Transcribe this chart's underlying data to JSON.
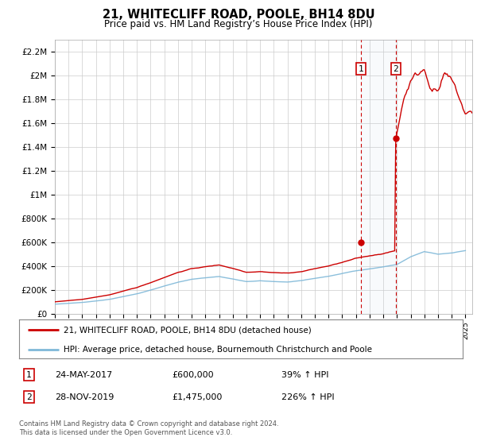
{
  "title": "21, WHITECLIFF ROAD, POOLE, BH14 8DU",
  "subtitle": "Price paid vs. HM Land Registry’s House Price Index (HPI)",
  "ylim": [
    0,
    2300000
  ],
  "yticks": [
    0,
    200000,
    400000,
    600000,
    800000,
    1000000,
    1200000,
    1400000,
    1600000,
    1800000,
    2000000,
    2200000
  ],
  "ytick_labels": [
    "£0",
    "£200K",
    "£400K",
    "£600K",
    "£800K",
    "£1M",
    "£1.2M",
    "£1.4M",
    "£1.6M",
    "£1.8M",
    "£2M",
    "£2.2M"
  ],
  "hpi_color": "#7fb8d8",
  "price_color": "#cc0000",
  "sale1_date": 2017.38,
  "sale1_price": 600000,
  "sale1_label": "1",
  "sale1_text": "24-MAY-2017",
  "sale1_amount": "£600,000",
  "sale1_pct": "39% ↑ HPI",
  "sale2_date": 2019.91,
  "sale2_price": 1475000,
  "sale2_label": "2",
  "sale2_text": "28-NOV-2019",
  "sale2_amount": "£1,475,000",
  "sale2_pct": "226% ↑ HPI",
  "legend_line1": "21, WHITECLIFF ROAD, POOLE, BH14 8DU (detached house)",
  "legend_line2": "HPI: Average price, detached house, Bournemouth Christchurch and Poole",
  "footnote": "Contains HM Land Registry data © Crown copyright and database right 2024.\nThis data is licensed under the Open Government Licence v3.0.",
  "background_color": "#ffffff",
  "grid_color": "#cccccc",
  "xlim_start": 1995,
  "xlim_end": 2025.5
}
